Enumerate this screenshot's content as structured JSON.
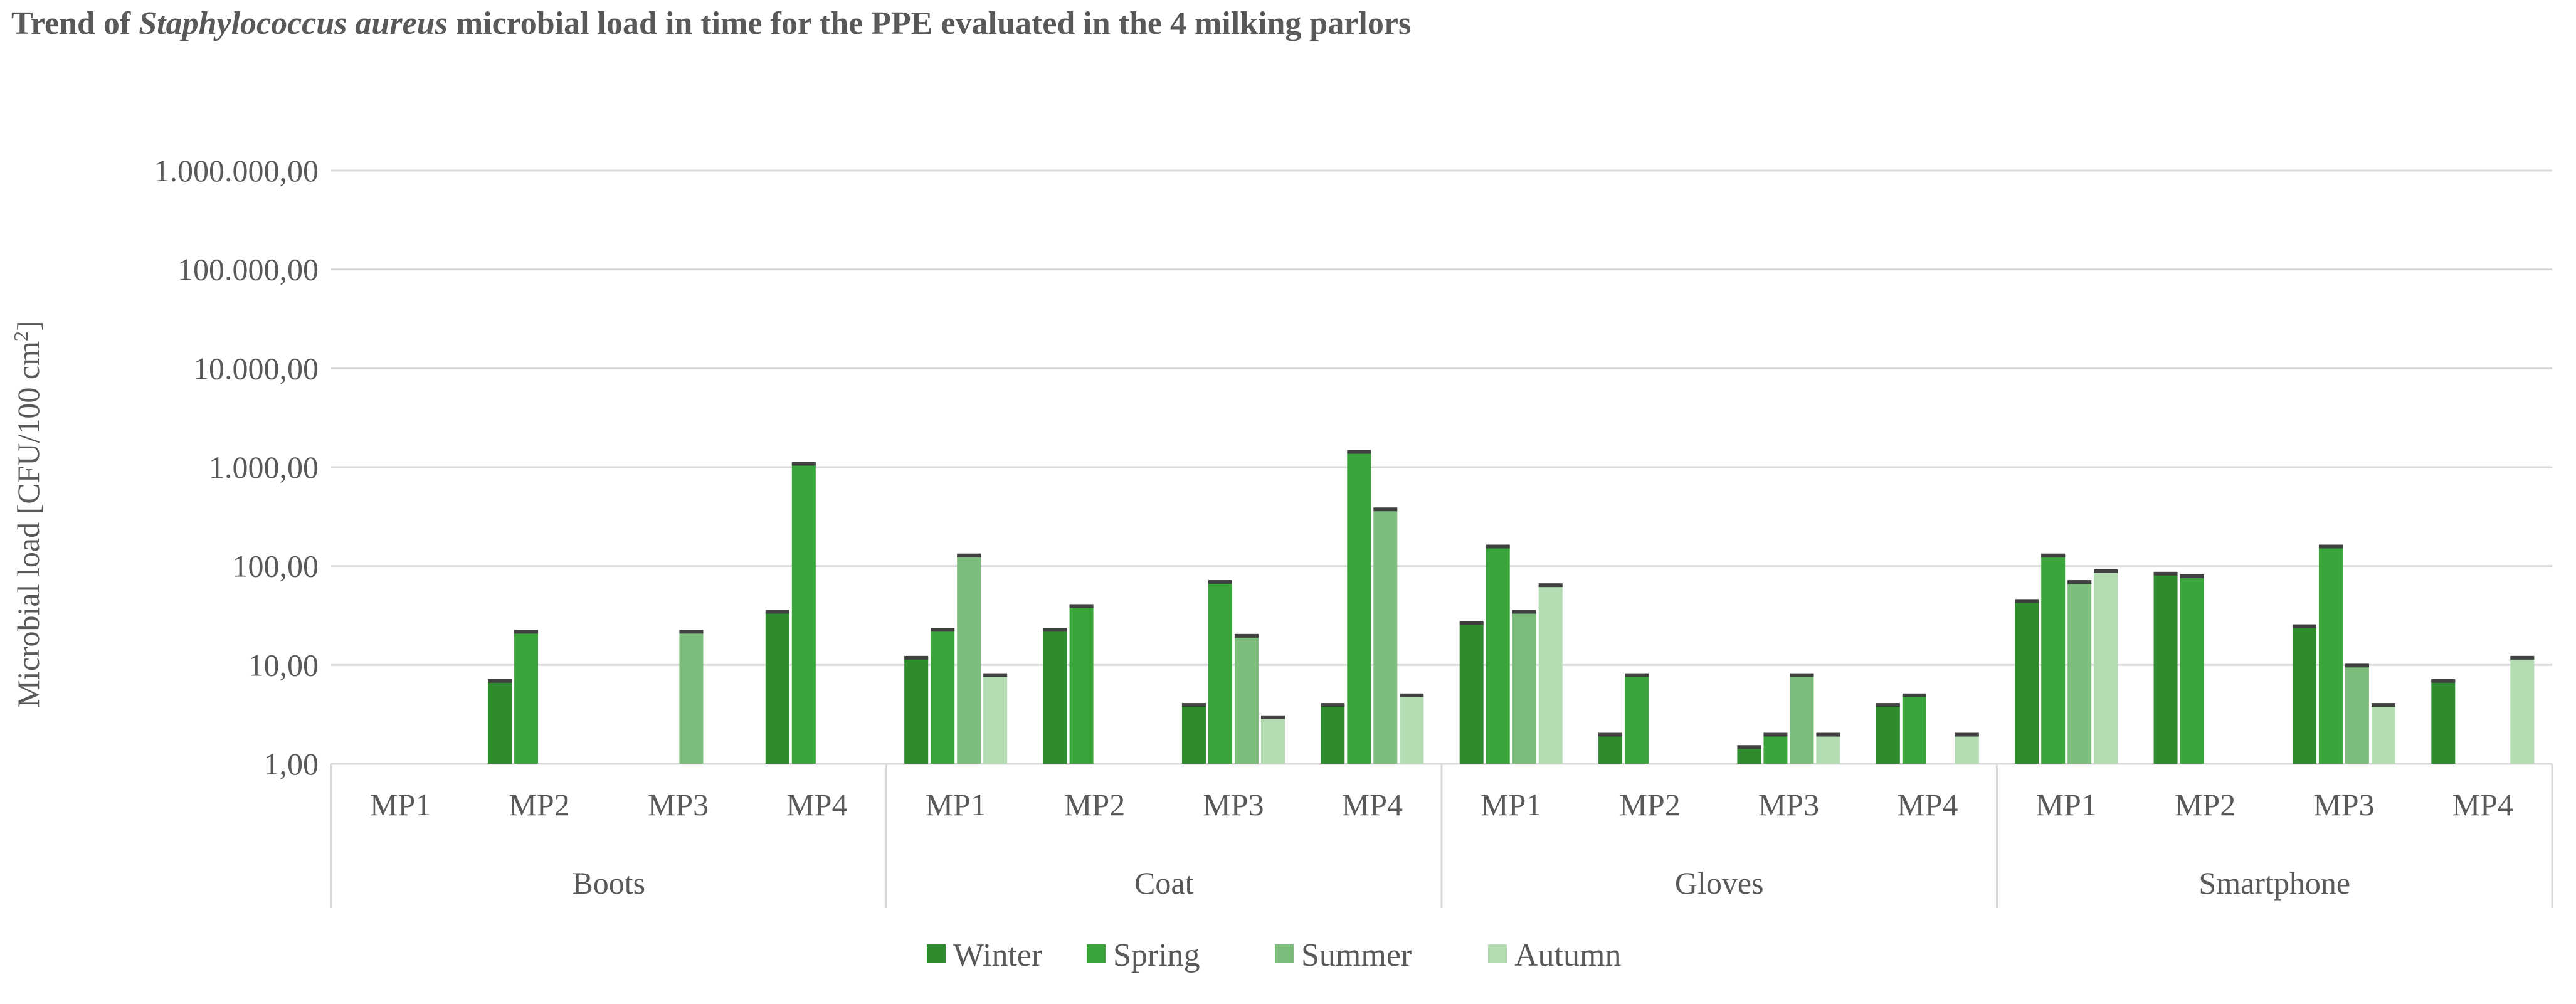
{
  "chart_data": {
    "type": "bar",
    "title_prefix": "Trend of ",
    "title_italic": "Staphylococcus aureus",
    "title_suffix": "  microbial load in time for the PPE evaluated in the 4 milking parlors",
    "ylabel": "Microbial load [CFU/100 cm",
    "ylabel_sup": "2",
    "ylabel_close": "]",
    "yscale": "log",
    "ylim": [
      1,
      1000000
    ],
    "yticks": [
      {
        "value": 1,
        "label": "1,00"
      },
      {
        "value": 10,
        "label": "10,00"
      },
      {
        "value": 100,
        "label": "100,00"
      },
      {
        "value": 1000,
        "label": "1.000,00"
      },
      {
        "value": 10000,
        "label": "10.000,00"
      },
      {
        "value": 100000,
        "label": "100.000,00"
      },
      {
        "value": 1000000,
        "label": "1.000.000,00"
      }
    ],
    "groups": [
      "Boots",
      "Coat",
      "Gloves",
      "Smartphone"
    ],
    "subcategories": [
      "MP1",
      "MP2",
      "MP3",
      "MP4"
    ],
    "series": [
      {
        "name": "Winter",
        "color": "#2e8b2e",
        "values": [
          null,
          7,
          null,
          35,
          12,
          23,
          4,
          4,
          27,
          2,
          1.5,
          4,
          45,
          85,
          25,
          7
        ]
      },
      {
        "name": "Spring",
        "color": "#3aa53a",
        "values": [
          null,
          22,
          null,
          1100,
          23,
          40,
          70,
          1450,
          160,
          8,
          2,
          5,
          130,
          80,
          160,
          null
        ]
      },
      {
        "name": "Summer",
        "color": "#7cbd7c",
        "values": [
          null,
          null,
          22,
          null,
          130,
          null,
          20,
          380,
          35,
          null,
          8,
          null,
          70,
          null,
          10,
          null
        ]
      },
      {
        "name": "Autumn",
        "color": "#b3dcb3",
        "values": [
          null,
          null,
          null,
          null,
          8,
          null,
          3,
          5,
          65,
          null,
          2,
          2,
          90,
          null,
          4,
          12
        ]
      }
    ],
    "legend_position": "bottom"
  }
}
